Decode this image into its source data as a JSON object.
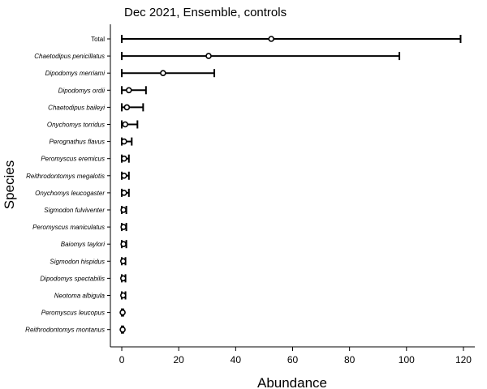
{
  "chart_data": {
    "type": "errorbar",
    "title": "Dec 2021, Ensemble, controls",
    "xlabel": "Abundance",
    "ylabel": "Species",
    "xlim": [
      -4,
      124
    ],
    "xticks": [
      0,
      20,
      40,
      60,
      80,
      100,
      120
    ],
    "grid": false,
    "categories": [
      "Total",
      "Chaetodipus penicillatus",
      "Dipodomys merriami",
      "Dipodomys ordii",
      "Chaetodipus baileyi",
      "Onychomys torridus",
      "Perognathus flavus",
      "Peromyscus eremicus",
      "Reithrodontomys megalotis",
      "Onychomys leucogaster",
      "Sigmodon fulviventer",
      "Peromyscus maniculatus",
      "Baiomys taylori",
      "Sigmodon hispidus",
      "Dipodomys spectabilis",
      "Neotoma albigula",
      "Peromyscus leucopus",
      "Reithrodontomys montanus"
    ],
    "series": [
      {
        "estimate": [
          52.5,
          30.5,
          14.5,
          2.5,
          1.8,
          1.2,
          0.8,
          0.8,
          0.8,
          0.8,
          0.6,
          0.6,
          0.6,
          0.5,
          0.5,
          0.5,
          0.3,
          0.3
        ],
        "lower": [
          0,
          0,
          0,
          0,
          0,
          0,
          0,
          0,
          0,
          0,
          0,
          0,
          0,
          0,
          0,
          0,
          0,
          0
        ],
        "upper": [
          119,
          97.5,
          32.5,
          8.5,
          7.5,
          5.5,
          3.5,
          2.5,
          2.5,
          2.5,
          1.6,
          1.6,
          1.6,
          1.3,
          1.3,
          1.3,
          0.5,
          0.5
        ]
      }
    ]
  }
}
